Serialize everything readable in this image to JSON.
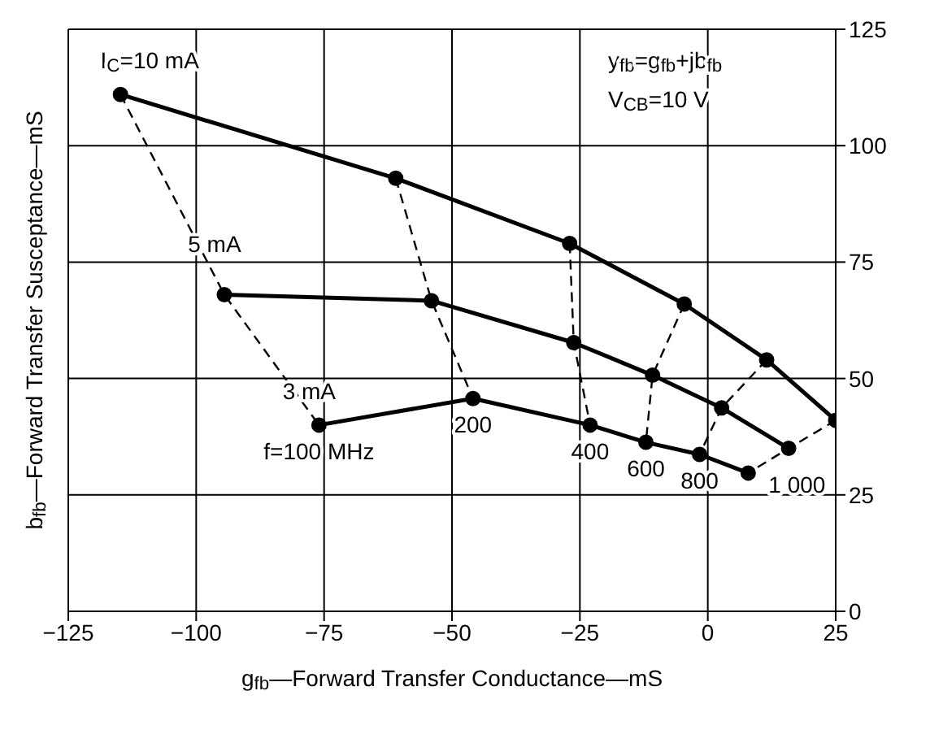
{
  "chart_data": {
    "type": "line",
    "xlabel": "g$_{fb}$—Forward Transfer Conductance—mS",
    "ylabel": "b$_{fb}$—Forward Transfer Susceptance—mS",
    "xlim": [
      -125,
      25
    ],
    "xticks": [
      -125,
      -100,
      -75,
      -50,
      -25,
      0,
      25
    ],
    "ylim": [
      0,
      125
    ],
    "yticks": [
      0,
      25,
      50,
      75,
      100,
      125
    ],
    "grid": true,
    "legend": false,
    "series": [
      {
        "name": "I$_{C}$=10 mA",
        "color": "#000000",
        "marker": "circle",
        "line_style": "solid",
        "x": [
          -114.8,
          -61,
          -27,
          -4.6,
          11.5,
          25
        ],
        "values": [
          111,
          93,
          79,
          66,
          54,
          41
        ]
      },
      {
        "name": "5 mA",
        "color": "#000000",
        "marker": "circle",
        "line_style": "solid",
        "x": [
          -94.5,
          -54,
          -26.2,
          -10.8,
          2.7,
          15.8
        ],
        "values": [
          68,
          66.7,
          57.7,
          50.7,
          43.7,
          35
        ]
      },
      {
        "name": "3 mA",
        "color": "#000000",
        "marker": "circle",
        "line_style": "solid",
        "x": [
          -76,
          -45.9,
          -23,
          -12.1,
          -1.6,
          7.9
        ],
        "values": [
          40,
          45.7,
          40,
          36.3,
          33.7,
          29.7
        ]
      },
      {
        "color": "#000000",
        "marker": "none",
        "line_style": "dashed",
        "x": [
          -114.8,
          -94.5,
          -76
        ],
        "values": [
          111,
          68,
          40
        ]
      },
      {
        "color": "#000000",
        "marker": "none",
        "line_style": "dashed",
        "x": [
          -61,
          -54,
          -45.9
        ],
        "values": [
          93,
          66.7,
          45.7
        ]
      },
      {
        "color": "#000000",
        "marker": "none",
        "line_style": "dashed",
        "x": [
          -27,
          -26.2,
          -23
        ],
        "values": [
          79,
          57.7,
          40
        ]
      },
      {
        "color": "#000000",
        "marker": "none",
        "line_style": "dashed",
        "x": [
          -4.6,
          -10.8,
          -12.1
        ],
        "values": [
          66,
          50.7,
          36.3
        ]
      },
      {
        "color": "#000000",
        "marker": "none",
        "line_style": "dashed",
        "x": [
          11.5,
          2.7,
          -1.6
        ],
        "values": [
          54,
          43.7,
          33.7
        ]
      },
      {
        "color": "#000000",
        "marker": "none",
        "line_style": "dashed",
        "x": [
          25,
          15.8,
          7.9
        ],
        "values": [
          41,
          35,
          29.7
        ]
      }
    ],
    "annotations": [
      {
        "text": "f=100 MHz",
        "x": -76,
        "y": 40
      },
      {
        "text": "200",
        "x": -45.9,
        "y": 45.7
      },
      {
        "text": "400",
        "x": -23,
        "y": 40
      },
      {
        "text": "600",
        "x": -12.1,
        "y": 36.3
      },
      {
        "text": "800",
        "x": -1.6,
        "y": 33.7
      },
      {
        "text": "1 000",
        "x": 7.9,
        "y": 29.7
      },
      "y$_{fb}$=g$_{fb}$+jb$_{fb}$",
      "V$_{CB}$=10 V"
    ]
  }
}
